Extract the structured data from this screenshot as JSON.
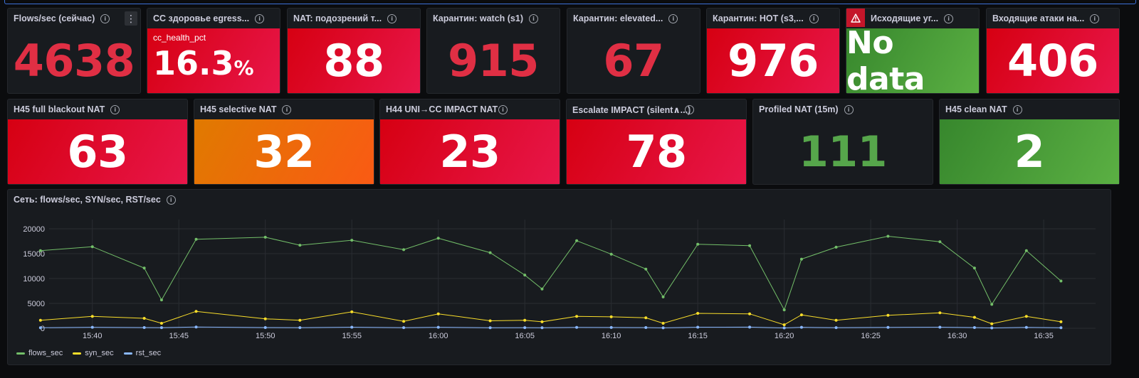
{
  "colors": {
    "red": "#e02f44",
    "green": "#73bf69",
    "yellow": "#fade2a",
    "blue": "#8ab8ff"
  },
  "row1": [
    {
      "title": "Flows/sec (сейчас)",
      "value": "4638",
      "style": "plain-red",
      "menu": true
    },
    {
      "title": "CC здоровье egress...",
      "gauge_label": "cc_health_pct",
      "value": "16.3",
      "unit": "%",
      "style": "gauge-red"
    },
    {
      "title": "NAT: подозрений т...",
      "value": "88",
      "style": "red"
    },
    {
      "title": "Карантин: watch (s1)",
      "value": "915",
      "style": "plain-red"
    },
    {
      "title": "Карантин: elevated...",
      "value": "67",
      "style": "plain-red"
    },
    {
      "title": "Карантин: HOT (s3,...",
      "value": "976",
      "style": "red"
    },
    {
      "title": "Исходящие уг...",
      "value": "No data",
      "style": "green",
      "warning": true
    },
    {
      "title": "Входящие атаки на...",
      "value": "406",
      "style": "red"
    }
  ],
  "row2": [
    {
      "title": "H45 full blackout NAT",
      "value": "63",
      "style": "red"
    },
    {
      "title": "H45 selective NAT",
      "value": "32",
      "style": "orange"
    },
    {
      "title": "H44 UNI→CC IMPACT NAT",
      "value": "23",
      "style": "red"
    },
    {
      "title": "Escalate IMPACT (silent∧...)",
      "value": "78",
      "style": "red"
    },
    {
      "title": "Profiled NAT (15m)",
      "value": "111",
      "style": "plain-green"
    },
    {
      "title": "H45 clean NAT",
      "value": "2",
      "style": "green"
    }
  ],
  "chart_panel": {
    "title": "Сеть: flows/sec, SYN/sec, RST/sec"
  },
  "chart_data": {
    "type": "line",
    "title": "Сеть: flows/sec, SYN/sec, RST/sec",
    "xlabel": "",
    "ylabel": "",
    "x_ticks": [
      "15:40",
      "15:45",
      "15:50",
      "15:55",
      "16:00",
      "16:05",
      "16:10",
      "16:15",
      "16:20",
      "16:25",
      "16:30",
      "16:35"
    ],
    "y_ticks": [
      0,
      5000,
      10000,
      15000,
      20000
    ],
    "ylim": [
      0,
      21000
    ],
    "xlim_minutes": [
      "15:37.5",
      "16:38"
    ],
    "legend_position": "bottom-left",
    "grid": true,
    "x": [
      "15:37",
      "15:40",
      "15:43",
      "15:44",
      "15:46",
      "15:50",
      "15:52",
      "15:55",
      "15:58",
      "16:00",
      "16:03",
      "16:05",
      "16:06",
      "16:08",
      "16:10",
      "16:12",
      "16:13",
      "16:15",
      "16:18",
      "16:20",
      "16:21",
      "16:23",
      "16:26",
      "16:29",
      "16:31",
      "16:32",
      "16:34",
      "16:36"
    ],
    "series": [
      {
        "name": "flows_sec",
        "color": "#73bf69",
        "values": [
          15600,
          16400,
          12100,
          5700,
          17900,
          18300,
          16700,
          17700,
          15800,
          18100,
          15200,
          10700,
          7900,
          17600,
          14900,
          11900,
          6300,
          16900,
          16600,
          3700,
          13900,
          16300,
          18500,
          17400,
          12100,
          4800,
          15600,
          9500
        ]
      },
      {
        "name": "syn_sec",
        "color": "#fade2a",
        "values": [
          1600,
          2400,
          2000,
          1000,
          3400,
          1900,
          1600,
          3300,
          1400,
          2900,
          1500,
          1600,
          1300,
          2400,
          2300,
          2100,
          1000,
          3000,
          2900,
          700,
          2700,
          1600,
          2600,
          3100,
          2200,
          900,
          2400,
          1300
        ]
      },
      {
        "name": "rst_sec",
        "color": "#8ab8ff",
        "values": [
          100,
          200,
          150,
          120,
          250,
          150,
          130,
          220,
          120,
          200,
          110,
          130,
          100,
          180,
          160,
          140,
          90,
          210,
          230,
          80,
          190,
          130,
          180,
          210,
          150,
          70,
          170,
          110
        ]
      }
    ]
  }
}
